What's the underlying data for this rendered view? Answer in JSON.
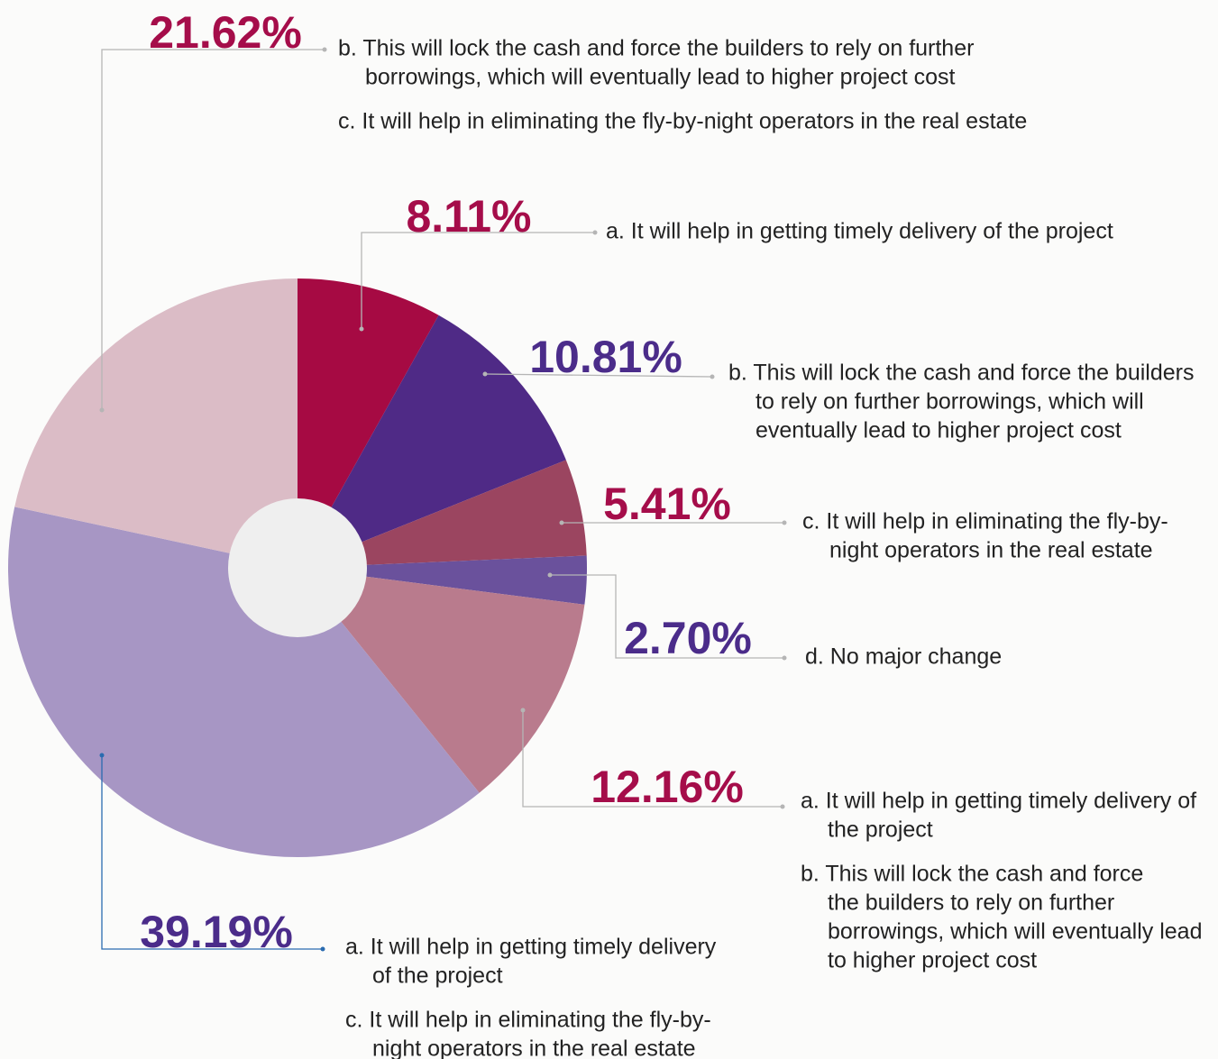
{
  "chart_data": {
    "type": "pie",
    "values": [
      8.11,
      10.81,
      5.41,
      2.7,
      12.16,
      39.19,
      21.62
    ],
    "value_labels": [
      "8.11%",
      "10.81%",
      "5.41%",
      "2.70%",
      "12.16%",
      "39.19%",
      "21.62%"
    ],
    "colors": [
      "#a60a43",
      "#4f2a86",
      "#9b4560",
      "#6a519c",
      "#b97b8d",
      "#a796c4",
      "#dbbcc6"
    ],
    "label_colors": [
      "#a50d4a",
      "#4b2c8a",
      "#a50d4a",
      "#4b2c8a",
      "#a50d4a",
      "#4b2c8a",
      "#a50d4a"
    ],
    "notes": [
      [
        [
          "a. It will help in getting timely delivery of the project"
        ]
      ],
      [
        [
          "b. This will lock the cash and force the builders",
          "to rely on further borrowings, which will",
          "eventually lead to higher project cost"
        ]
      ],
      [
        [
          "c. It will help in eliminating the fly-by-",
          "night operators in the real estate"
        ]
      ],
      [
        [
          "d. No major change"
        ]
      ],
      [
        [
          "a. It will help in getting timely delivery of",
          "the project"
        ],
        [
          "b. This will lock the cash and force",
          "the builders to rely on further",
          "borrowings, which will eventually lead",
          "to higher project cost"
        ]
      ],
      [
        [
          "a. It will help in getting timely delivery",
          "of the project"
        ],
        [
          "c. It will help in eliminating the fly-by-",
          "night operators in the real estate"
        ]
      ],
      [
        [
          "b. This will lock the cash and force the builders to rely on further",
          "borrowings, which will eventually lead to higher project cost"
        ],
        [
          "c. It will help in eliminating the fly-by-night operators in the real estate"
        ]
      ]
    ]
  }
}
